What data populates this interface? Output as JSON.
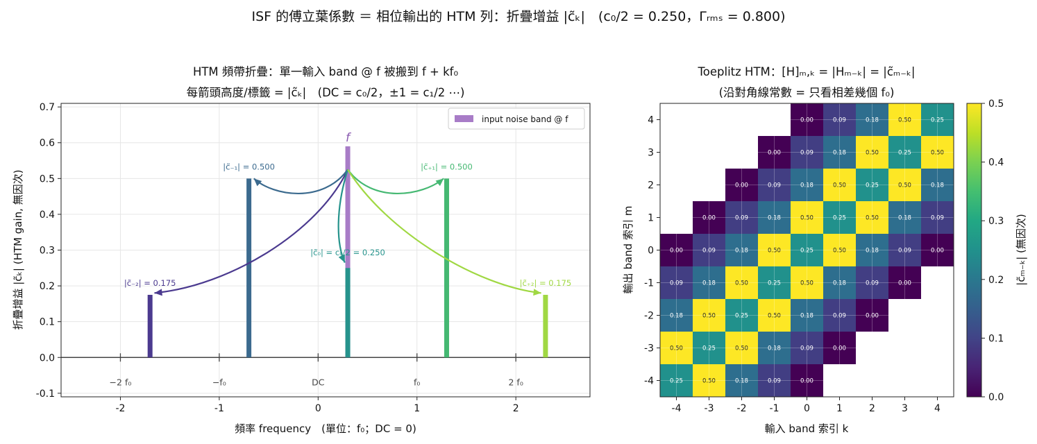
{
  "suptitle": "ISF 的傅立葉係數 ＝ 相位輸出的 HTM 列：折疊增益 |c̃ₖ|　(c₀/2 = 0.250，Γᵣₘₛ = 0.800)",
  "colors": {
    "input_band": "#a87cc7",
    "arrow_m2": "#4b3a8f",
    "arrow_m1": "#3b6a8e",
    "arrow_0": "#26938c",
    "arrow_p1": "#45b872",
    "arrow_p2": "#a0d843",
    "zero_line": "#444444",
    "grid": "#e6e6e6"
  },
  "chart_data": [
    {
      "type": "bar",
      "title_line1": "HTM 頻帶折疊：單一輸入 band @ f 被搬到 f + kf₀",
      "title_line2": "每箭頭高度/標籤 = |c̃ₖ|　(DC = c₀/2，±1 = c₁/2 ⋯)",
      "xlabel": "頻率 frequency　(單位：f₀；DC = 0)",
      "ylabel": "折疊增益 |c̃ₖ| (HTM gain, 無因次)",
      "xlim": [
        -2.6,
        2.75
      ],
      "ylim": [
        -0.11,
        0.71
      ],
      "xticks": [
        -2,
        -1,
        0,
        1,
        2
      ],
      "xtick_labels": [
        "-2",
        "-1",
        "0",
        "1",
        "2"
      ],
      "yticks": [
        -0.1,
        0.0,
        0.1,
        0.2,
        0.3,
        0.4,
        0.5,
        0.6,
        0.7
      ],
      "ytick_labels": [
        "-0.1",
        "0.0",
        "0.1",
        "0.2",
        "0.3",
        "0.4",
        "0.5",
        "0.6",
        "0.7"
      ],
      "grid": true,
      "legend": {
        "position": "top-right",
        "entries": [
          "input noise band @ f"
        ]
      },
      "input_band": {
        "x": 0.3,
        "value": 0.59,
        "label": "f"
      },
      "harmonic_markers": [
        {
          "x": -2,
          "label": "−2 f₀"
        },
        {
          "x": -1,
          "label": "−f₀"
        },
        {
          "x": 0,
          "label": "DC"
        },
        {
          "x": 1,
          "label": "f₀"
        },
        {
          "x": 2,
          "label": "2 f₀"
        }
      ],
      "bars": [
        {
          "k": -2,
          "x": -1.7,
          "value": 0.175,
          "label": "|c̃₋₂| = 0.175"
        },
        {
          "k": -1,
          "x": -0.7,
          "value": 0.5,
          "label": "|c̃₋₁| = 0.500"
        },
        {
          "k": 0,
          "x": 0.3,
          "value": 0.25,
          "label": "|c̃₀| = c₀/2 = 0.250"
        },
        {
          "k": 1,
          "x": 1.3,
          "value": 0.5,
          "label": "|c̃₊₁| = 0.500"
        },
        {
          "k": 2,
          "x": 2.3,
          "value": 0.175,
          "label": "|c̃₊₂| = 0.175"
        }
      ]
    },
    {
      "type": "heatmap",
      "title_line1": "Toeplitz HTM：[H]ₘ,ₖ = |Hₘ₋ₖ| = |c̃ₘ₋ₖ|",
      "title_line2": "(沿對角線常數 = 只看相差幾個 f₀)",
      "xlabel": "輸入 band 索引 k",
      "ylabel": "輸出 band 索引 m",
      "x_index": [
        -4,
        -3,
        -2,
        -1,
        0,
        1,
        2,
        3,
        4
      ],
      "y_index": [
        4,
        3,
        2,
        1,
        0,
        -1,
        -2,
        -3,
        -4
      ],
      "colorbar": {
        "label": "|c̃ₘ₋ₖ| (無因次)",
        "range": [
          0.0,
          0.5
        ],
        "ticks": [
          "0.0",
          "0.1",
          "0.2",
          "0.3",
          "0.4",
          "0.5"
        ],
        "colormap": "viridis"
      },
      "rows": [
        [
          null,
          null,
          null,
          null,
          0.0,
          0.09,
          0.18,
          0.5,
          0.25
        ],
        [
          null,
          null,
          null,
          0.0,
          0.09,
          0.18,
          0.5,
          0.25,
          0.5
        ],
        [
          null,
          null,
          0.0,
          0.09,
          0.18,
          0.5,
          0.25,
          0.5,
          0.18
        ],
        [
          null,
          0.0,
          0.09,
          0.18,
          0.5,
          0.25,
          0.5,
          0.18,
          0.09
        ],
        [
          0.0,
          0.09,
          0.18,
          0.5,
          0.25,
          0.5,
          0.18,
          0.09,
          0.0
        ],
        [
          0.09,
          0.18,
          0.5,
          0.25,
          0.5,
          0.18,
          0.09,
          0.0,
          null
        ],
        [
          0.18,
          0.5,
          0.25,
          0.5,
          0.18,
          0.09,
          0.0,
          null,
          null
        ],
        [
          0.5,
          0.25,
          0.5,
          0.18,
          0.09,
          0.0,
          null,
          null,
          null
        ],
        [
          0.25,
          0.5,
          0.18,
          0.09,
          0.0,
          null,
          null,
          null,
          null
        ]
      ]
    }
  ]
}
